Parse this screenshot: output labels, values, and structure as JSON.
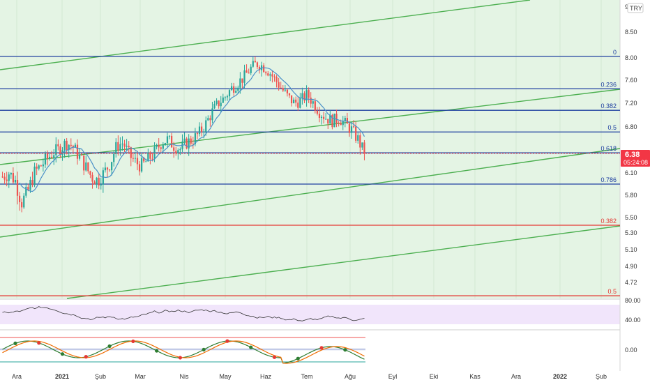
{
  "price_axis": {
    "labels": [
      {
        "t": "9.",
        "v": 9.0
      },
      {
        "t": "8.50",
        "v": 8.5
      },
      {
        "t": "8.00",
        "v": 8.0
      },
      {
        "t": "7.60",
        "v": 7.6
      },
      {
        "t": "7.20",
        "v": 7.2
      },
      {
        "t": "6.80",
        "v": 6.8
      },
      {
        "t": "6.10",
        "v": 6.1
      },
      {
        "t": "5.80",
        "v": 5.8
      },
      {
        "t": "5.50",
        "v": 5.5
      },
      {
        "t": "5.30",
        "v": 5.3
      },
      {
        "t": "5.10",
        "v": 5.1
      },
      {
        "t": "4.90",
        "v": 4.9
      },
      {
        "t": "4.72",
        "v": 4.72
      }
    ],
    "currency": "TRY"
  },
  "current_price": {
    "price": "6.38",
    "countdown": "05:24:08",
    "value": 6.38,
    "color": "#f23645"
  },
  "fib_levels": [
    {
      "label": "0",
      "price": 8.03,
      "color": "#1e3fa0"
    },
    {
      "label": "0.236",
      "price": 7.45,
      "color": "#1e3fa0"
    },
    {
      "label": "0.382",
      "price": 7.08,
      "color": "#1e3fa0"
    },
    {
      "label": "0.5",
      "price": 6.72,
      "color": "#1e3fa0"
    },
    {
      "label": "0.618",
      "price": 6.39,
      "color": "#1e3fa0"
    },
    {
      "label": "0.786",
      "price": 5.95,
      "color": "#1e3fa0"
    },
    {
      "label": "0.382",
      "price": 5.4,
      "color": "#e53935"
    },
    {
      "label": "0.5",
      "price": 4.62,
      "color": "#e53935"
    }
  ],
  "rsi_panel": {
    "labels": [
      "80.00",
      "40.00"
    ]
  },
  "osc_panel": {
    "labels": [
      "0.00"
    ]
  },
  "time_axis": [
    "Ara",
    "2021",
    "Şub",
    "Mar",
    "Nis",
    "May",
    "Haz",
    "Tem",
    "Ağu",
    "Eyl",
    "Eki",
    "Kas",
    "Ara",
    "2022",
    "Şub"
  ],
  "colors": {
    "up": "#26a69a",
    "down": "#ef5350",
    "bg": "#e4f4e4",
    "channel": "#4caf50",
    "ma": "#4a90c8",
    "rsi_bg": "#f1e5fb"
  },
  "chart_data": {
    "type": "candlestick",
    "symbol_currency": "TRY",
    "x_start": "2020-12-01",
    "last_close": 6.38,
    "approx_closes": [
      6.05,
      6.1,
      6.0,
      5.7,
      5.85,
      6.1,
      6.2,
      6.3,
      6.4,
      6.45,
      6.55,
      6.5,
      6.35,
      6.2,
      6.05,
      6.0,
      6.1,
      6.25,
      6.5,
      6.55,
      6.35,
      6.25,
      6.2,
      6.3,
      6.4,
      6.55,
      6.6,
      6.5,
      6.45,
      6.55,
      6.6,
      6.7,
      6.85,
      7.05,
      7.2,
      7.3,
      7.45,
      7.55,
      7.65,
      7.8,
      7.9,
      7.85,
      7.75,
      7.6,
      7.45,
      7.3,
      7.2,
      7.25,
      7.35,
      7.2,
      7.05,
      6.95,
      6.9,
      6.95,
      6.85,
      6.75,
      6.6,
      6.38
    ]
  }
}
